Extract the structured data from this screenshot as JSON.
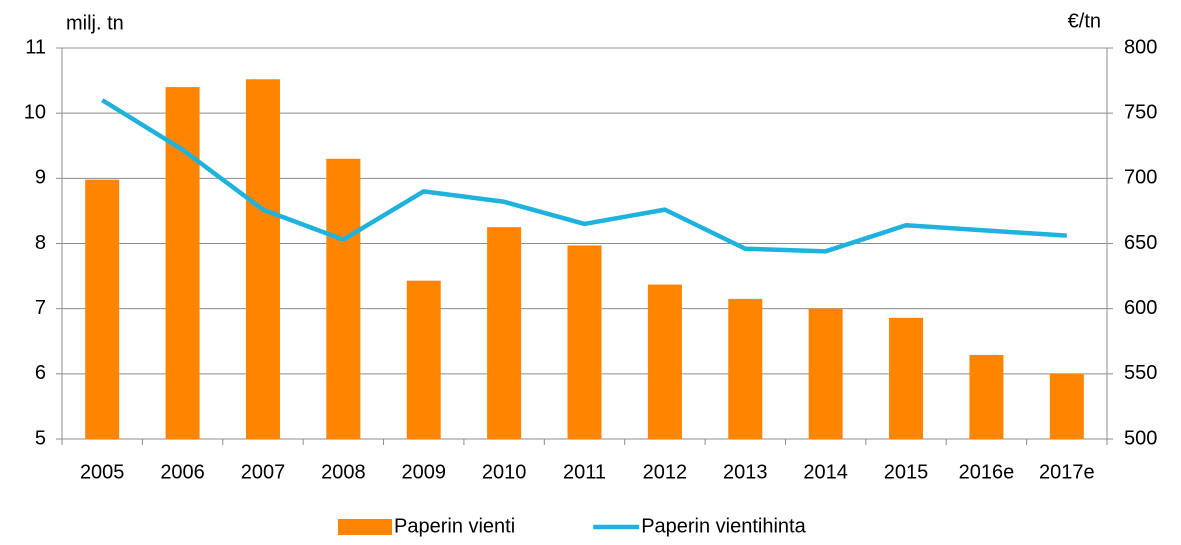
{
  "chart_data": {
    "type": "combo",
    "y_label": "milj. tn",
    "y2_label": "€/tn",
    "categories": [
      "2005",
      "2006",
      "2007",
      "2008",
      "2009",
      "2010",
      "2011",
      "2012",
      "2013",
      "2014",
      "2015",
      "2016e",
      "2017e"
    ],
    "series": [
      {
        "name": "Paperin vienti",
        "type": "bar",
        "color": "#ff8400",
        "axis": "y",
        "values": [
          8.98,
          10.4,
          10.52,
          9.3,
          7.43,
          8.25,
          7.97,
          7.37,
          7.15,
          7.0,
          6.86,
          6.29,
          6.0
        ]
      },
      {
        "name": "Paperin vientihinta",
        "type": "line",
        "color": "#1fb2dc",
        "axis": "y2",
        "values": [
          760,
          722,
          676,
          653,
          690,
          682,
          665,
          676,
          646,
          644,
          664,
          660,
          656
        ]
      }
    ],
    "ylim": [
      5,
      11
    ],
    "yticks": [
      5,
      6,
      7,
      8,
      9,
      10,
      11
    ],
    "y2lim": [
      500,
      800
    ],
    "y2ticks": [
      500,
      550,
      600,
      650,
      700,
      750,
      800
    ],
    "grid": true,
    "legend": "bottom"
  }
}
